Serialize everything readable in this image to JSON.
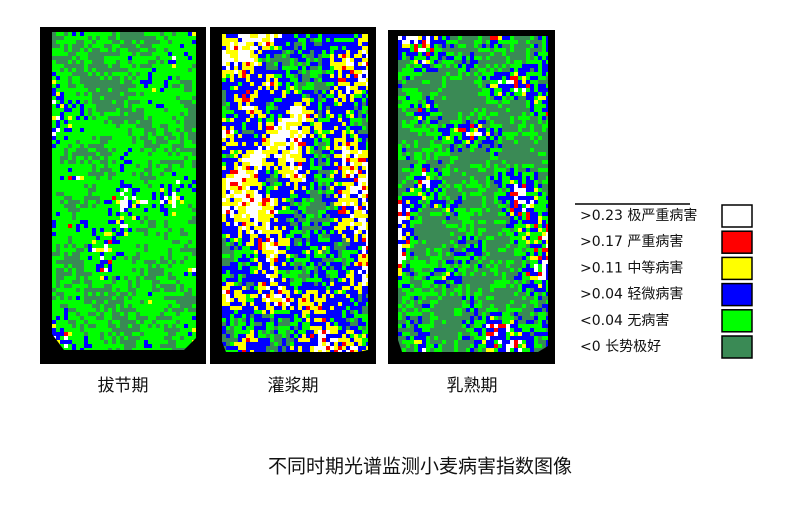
{
  "panels": [
    {
      "label": "拔节期"
    },
    {
      "label": "灌浆期"
    },
    {
      "label": "乳熟期"
    }
  ],
  "legend": [
    {
      "label": ">0.23 极严重病害",
      "color": "#ffffff"
    },
    {
      "label": ">0.17 严重病害",
      "color": "#ff0000"
    },
    {
      "label": ">0.11 中等病害",
      "color": "#ffff00"
    },
    {
      "label": ">0.04 轻微病害",
      "color": "#0000ff"
    },
    {
      "label": "<0.04 无病害",
      "color": "#00ff00"
    },
    {
      "label": "<0  长势极好",
      "color": "#3a8a55"
    }
  ],
  "caption": "不同时期光谱监测小麦病害指数图像"
}
